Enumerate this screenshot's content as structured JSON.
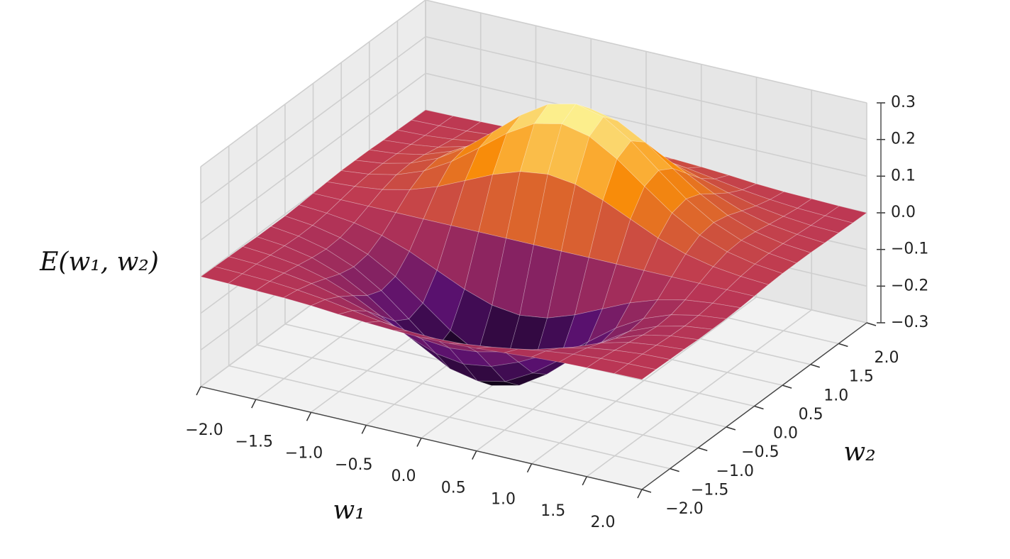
{
  "chart_data": {
    "type": "surface",
    "xlabel": "w₁",
    "ylabel": "w₂",
    "zlabel": "E(w₁, w₂)",
    "x": [
      -2,
      -1.75,
      -1.5,
      -1.25,
      -1,
      -0.75,
      -0.5,
      -0.25,
      0,
      0.25,
      0.5,
      0.75,
      1,
      1.25,
      1.5,
      1.75,
      2
    ],
    "y": [
      -2,
      -1.75,
      -1.5,
      -1.25,
      -1,
      -0.75,
      -0.5,
      -0.25,
      0,
      0.25,
      0.5,
      0.75,
      1,
      1.25,
      1.5,
      1.75,
      2
    ],
    "z": [
      [
        0,
        -0.001,
        -0.003,
        -0.005,
        -0.009,
        -0.015,
        -0.02,
        -0.024,
        -0.026,
        -0.024,
        -0.02,
        -0.015,
        -0.009,
        -0.005,
        -0.003,
        -0.001,
        0
      ],
      [
        -0.001,
        -0.003,
        -0.006,
        -0.012,
        -0.021,
        -0.033,
        -0.045,
        -0.054,
        -0.057,
        -0.054,
        -0.045,
        -0.033,
        -0.021,
        -0.012,
        -0.006,
        -0.003,
        -0.001
      ],
      [
        -0.002,
        -0.005,
        -0.012,
        -0.023,
        -0.041,
        -0.063,
        -0.086,
        -0.104,
        -0.111,
        -0.104,
        -0.086,
        -0.063,
        -0.041,
        -0.023,
        -0.012,
        -0.005,
        -0.002
      ],
      [
        -0.003,
        -0.009,
        -0.019,
        -0.038,
        -0.067,
        -0.105,
        -0.143,
        -0.172,
        -0.183,
        -0.172,
        -0.143,
        -0.105,
        -0.067,
        -0.038,
        -0.019,
        -0.009,
        -0.003
      ],
      [
        -0.005,
        -0.012,
        -0.027,
        -0.054,
        -0.095,
        -0.147,
        -0.201,
        -0.242,
        -0.258,
        -0.242,
        -0.201,
        -0.147,
        -0.095,
        -0.054,
        -0.027,
        -0.012,
        -0.005
      ],
      [
        -0.005,
        -0.014,
        -0.032,
        -0.063,
        -0.11,
        -0.17,
        -0.233,
        -0.281,
        -0.299,
        -0.281,
        -0.233,
        -0.17,
        -0.11,
        -0.063,
        -0.032,
        -0.014,
        -0.005
      ],
      [
        -0.005,
        -0.013,
        -0.029,
        -0.057,
        -0.1,
        -0.155,
        -0.212,
        -0.256,
        -0.273,
        -0.256,
        -0.212,
        -0.155,
        -0.1,
        -0.057,
        -0.029,
        -0.013,
        -0.005
      ],
      [
        -0.003,
        -0.008,
        -0.017,
        -0.034,
        -0.06,
        -0.094,
        -0.128,
        -0.154,
        -0.164,
        -0.154,
        -0.128,
        -0.094,
        -0.06,
        -0.034,
        -0.017,
        -0.008,
        -0.003
      ],
      [
        0,
        0,
        0,
        0,
        0,
        0,
        0,
        0,
        0,
        0,
        0,
        0,
        0,
        0,
        0,
        0,
        0
      ],
      [
        0.003,
        0.008,
        0.017,
        0.034,
        0.06,
        0.094,
        0.128,
        0.154,
        0.164,
        0.154,
        0.128,
        0.094,
        0.06,
        0.034,
        0.017,
        0.008,
        0.003
      ],
      [
        0.005,
        0.013,
        0.029,
        0.057,
        0.1,
        0.155,
        0.212,
        0.256,
        0.273,
        0.256,
        0.212,
        0.155,
        0.1,
        0.057,
        0.029,
        0.013,
        0.005
      ],
      [
        0.005,
        0.014,
        0.032,
        0.063,
        0.11,
        0.17,
        0.233,
        0.281,
        0.299,
        0.281,
        0.233,
        0.17,
        0.11,
        0.063,
        0.032,
        0.014,
        0.005
      ],
      [
        0.005,
        0.012,
        0.027,
        0.054,
        0.095,
        0.147,
        0.201,
        0.242,
        0.258,
        0.242,
        0.201,
        0.147,
        0.095,
        0.054,
        0.027,
        0.012,
        0.005
      ],
      [
        0.003,
        0.009,
        0.019,
        0.038,
        0.067,
        0.105,
        0.143,
        0.172,
        0.183,
        0.172,
        0.143,
        0.105,
        0.067,
        0.038,
        0.019,
        0.009,
        0.003
      ],
      [
        0.002,
        0.005,
        0.012,
        0.023,
        0.041,
        0.063,
        0.086,
        0.104,
        0.111,
        0.104,
        0.086,
        0.063,
        0.041,
        0.023,
        0.012,
        0.005,
        0.002
      ],
      [
        0.001,
        0.003,
        0.006,
        0.012,
        0.021,
        0.033,
        0.045,
        0.054,
        0.057,
        0.054,
        0.045,
        0.033,
        0.021,
        0.012,
        0.006,
        0.003,
        0.001
      ],
      [
        0,
        0.001,
        0.003,
        0.005,
        0.009,
        0.015,
        0.02,
        0.024,
        0.026,
        0.024,
        0.02,
        0.015,
        0.009,
        0.005,
        0.003,
        0.001,
        0
      ]
    ],
    "xlim": [
      -2,
      2
    ],
    "ylim": [
      -2,
      2
    ],
    "zlim": [
      -0.3,
      0.3
    ],
    "xticks": [
      {
        "value": -2,
        "label": "−2.0"
      },
      {
        "value": -1.5,
        "label": "−1.5"
      },
      {
        "value": -1,
        "label": "−1.0"
      },
      {
        "value": -0.5,
        "label": "−0.5"
      },
      {
        "value": 0,
        "label": "0.0"
      },
      {
        "value": 0.5,
        "label": "0.5"
      },
      {
        "value": 1,
        "label": "1.0"
      },
      {
        "value": 1.5,
        "label": "1.5"
      },
      {
        "value": 2,
        "label": "2.0"
      }
    ],
    "yticks": [
      {
        "value": -2,
        "label": "−2.0"
      },
      {
        "value": -1.5,
        "label": "−1.5"
      },
      {
        "value": -1,
        "label": "−1.0"
      },
      {
        "value": -0.5,
        "label": "−0.5"
      },
      {
        "value": 0,
        "label": "0.0"
      },
      {
        "value": 0.5,
        "label": "0.5"
      },
      {
        "value": 1,
        "label": "1.0"
      },
      {
        "value": 1.5,
        "label": "1.5"
      },
      {
        "value": 2,
        "label": "2.0"
      }
    ],
    "zticks": [
      {
        "value": -0.3,
        "label": "−0.3"
      },
      {
        "value": -0.2,
        "label": "−0.2"
      },
      {
        "value": -0.1,
        "label": "−0.1"
      },
      {
        "value": 0,
        "label": "0.0"
      },
      0.1,
      0.2,
      0.3
    ],
    "grid": true,
    "colormap": [
      "#000004",
      "#57106e",
      "#bc3754",
      "#f98e09",
      "#fcffa4"
    ]
  }
}
